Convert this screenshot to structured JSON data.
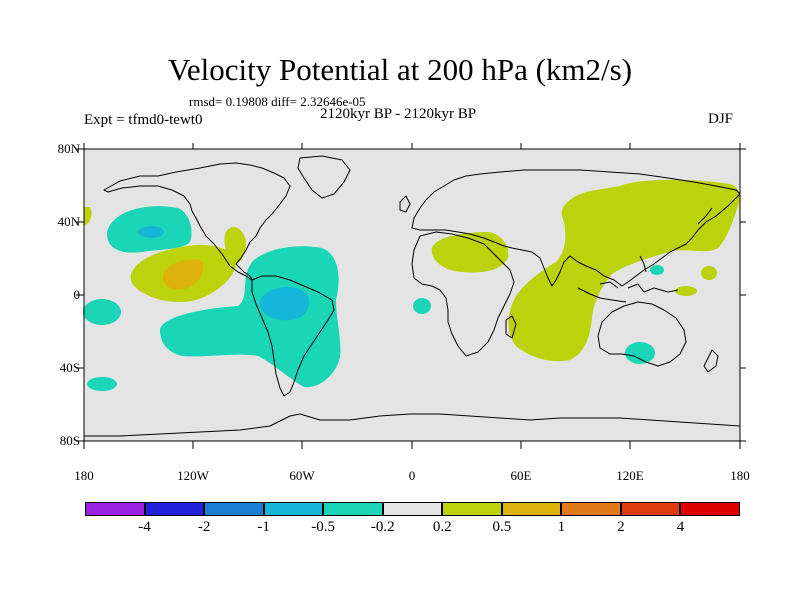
{
  "figure": {
    "title": "Velocity Potential at 200 hPa (km2/s)",
    "stats": "rmsd= 0.19808 diff= 2.32646e-05",
    "period": "2120kyr BP - 2120kyr BP",
    "experiment": "Expt = tfmd0-tewt0",
    "season": "DJF"
  },
  "axes": {
    "lon_labels": [
      "180",
      "120W",
      "60W",
      "0",
      "60E",
      "120E",
      "180"
    ],
    "lat_labels": [
      "80N",
      "40N",
      "0",
      "40S",
      "80S"
    ]
  },
  "colorbar": {
    "colors": [
      "#9a22e0",
      "#2222dd",
      "#1b7fd6",
      "#16b6d8",
      "#1ad6b6",
      "#e4e4e4",
      "#bcd20c",
      "#ddb20b",
      "#e1791a",
      "#dd3c0c",
      "#e00000"
    ],
    "labels": [
      "-4",
      "-2",
      "-1",
      "-0.5",
      "-0.2",
      "0.2",
      "0.5",
      "1",
      "2",
      "4"
    ]
  },
  "map_colors": {
    "ocean": "#e4e4e4",
    "positive_weak": "#bcd20c",
    "positive_mid": "#ddb20b",
    "negative_weak": "#1ad6b6",
    "negative_mid": "#16b6d8",
    "coastline": "#000000"
  }
}
